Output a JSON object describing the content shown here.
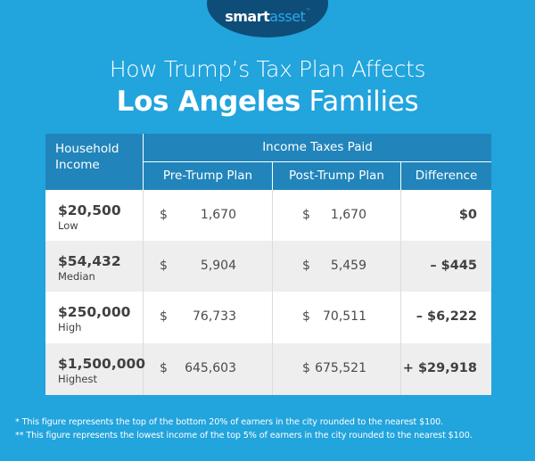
{
  "brand": {
    "logo_part1": "smart",
    "logo_part2": "asset",
    "logo_tm": "™"
  },
  "title": {
    "line1": "How Trump’s Tax Plan Affects",
    "line2_bold": "Los Angeles",
    "line2_rest": " Families"
  },
  "colors": {
    "background": "#22a4dd",
    "header": "#2185bb",
    "logo_bg": "#0e4d78",
    "row_alt": "#eeeeee"
  },
  "table": {
    "header": {
      "household": "Household Income",
      "group": "Income Taxes Paid",
      "pre": "Pre-Trump Plan",
      "post": "Post-Trump Plan",
      "diff": "Difference"
    },
    "rows": [
      {
        "income": "$20,500",
        "label": "Low",
        "pre_sym": "$",
        "pre": "1,670",
        "post_sym": "$",
        "post": "1,670",
        "diff": "$0"
      },
      {
        "income": "$54,432",
        "label": "Median",
        "pre_sym": "$",
        "pre": "5,904",
        "post_sym": "$",
        "post": "5,459",
        "diff": "– $445"
      },
      {
        "income": "$250,000",
        "label": "High",
        "pre_sym": "$",
        "pre": "76,733",
        "post_sym": "$",
        "post": "70,511",
        "diff": "– $6,222"
      },
      {
        "income": "$1,500,000",
        "label": "Highest",
        "pre_sym": "$",
        "pre": "645,603",
        "post_sym": "$",
        "post": "675,521",
        "diff": "+ $29,918"
      }
    ]
  },
  "footnotes": [
    "* This figure represents the top of the bottom 20% of earners in the city rounded to the nearest $100.",
    "** This figure represents the lowest income of the top 5% of earners in the city rounded to the nearest $100."
  ]
}
